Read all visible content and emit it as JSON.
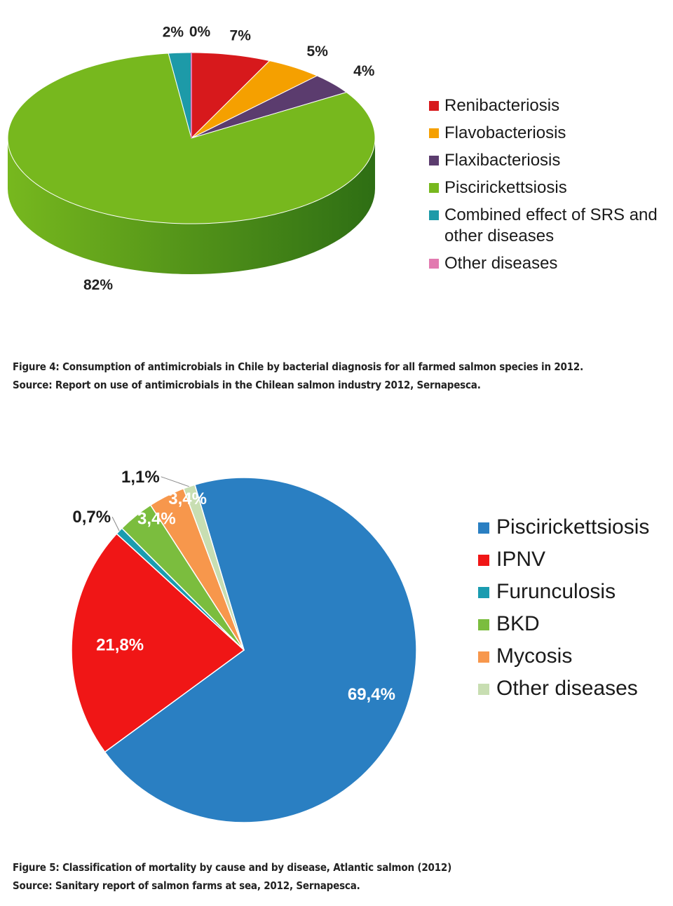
{
  "figure4": {
    "caption": "Figure 4: Consumption of antimicrobials in Chile by bacterial diagnosis for all farmed salmon species in 2012.",
    "source": "Source: Report on use of antimicrobials in the Chilean salmon industry 2012, Sernapesca."
  },
  "figure5": {
    "caption": "Figure 5: Classification of mortality by cause and by disease, Atlantic salmon (2012)",
    "source": "Source: Sanitary report of salmon farms at sea, 2012, Sernapesca."
  },
  "chart_data": [
    {
      "type": "pie",
      "style": "3d",
      "legend_position": "right",
      "categories": [
        "Renibacteriosis",
        "Flavobacteriosis",
        "Flaxibacteriosis",
        "Piscirickettsiosis",
        "Combined effect of SRS and other diseases",
        "Other diseases"
      ],
      "values": [
        7,
        5,
        4,
        82,
        2,
        0
      ],
      "labels": [
        "7%",
        "5%",
        "4%",
        "82%",
        "2%",
        "0%"
      ],
      "colors": [
        "#d7191c",
        "#f5a000",
        "#5b3c6e",
        "#77b81e",
        "#1d9aa8",
        "#e27ab0"
      ],
      "side_colors": [
        "#9a1114",
        "#b87400",
        "#3e2850",
        "#2e6e14",
        "#136b75",
        "#a8507f"
      ]
    },
    {
      "type": "pie",
      "legend_position": "right",
      "categories": [
        "Piscirickettsiosis",
        "IPNV",
        "Furunculosis",
        "BKD",
        "Mycosis",
        "Other diseases"
      ],
      "values": [
        69.4,
        21.8,
        0.7,
        3.4,
        3.4,
        1.1
      ],
      "labels": [
        "69,4%",
        "21,8%",
        "0,7%",
        "3,4%",
        "3,4%",
        "1,1%"
      ],
      "colors": [
        "#2a7fc2",
        "#f01616",
        "#1a9cb0",
        "#7bbd3e",
        "#f7974c",
        "#c8deb2"
      ]
    }
  ]
}
